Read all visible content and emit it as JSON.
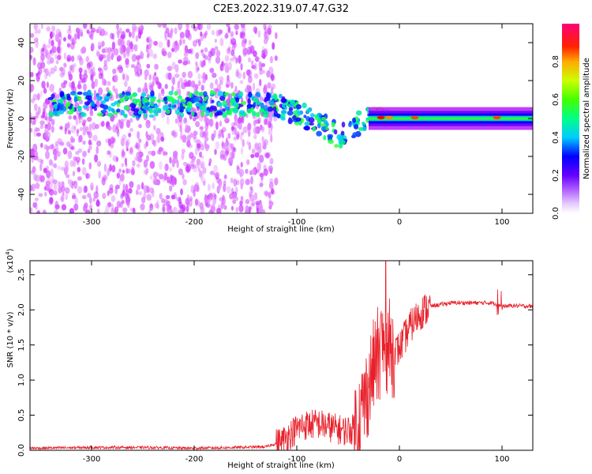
{
  "chart_data": [
    {
      "type": "heatmap",
      "title": "C2E3.2022.319.07.47.G32",
      "xlabel": "Height of straight line (km)",
      "ylabel": "Frequency (Hz)",
      "xlim": [
        -360,
        130
      ],
      "ylim": [
        -50,
        50
      ],
      "xticks": [
        "-300",
        "-200",
        "-100",
        "0",
        "100"
      ],
      "yticks": [
        "-40",
        "-20",
        "0",
        "20",
        "40"
      ],
      "colorbar": {
        "label": "Normalized spectral amplitude",
        "range": [
          0,
          1
        ],
        "ticks": [
          "0.0",
          "0.2",
          "0.4",
          "0.6",
          "0.8"
        ],
        "colors": [
          "#ffffff",
          "#cc33ff",
          "#6600ff",
          "#0000ff",
          "#00ccff",
          "#00ff66",
          "#66ff00",
          "#ffff00",
          "#ff8800",
          "#ff0000",
          "#ff0077"
        ]
      },
      "ridge": {
        "x": [
          -300,
          -250,
          -200,
          -150,
          -120,
          -100,
          -80,
          -60,
          -50,
          -40,
          -30,
          -20,
          -10,
          0,
          50,
          100,
          130
        ],
        "y": [
          8,
          7,
          8,
          8,
          7,
          3,
          -2,
          -9,
          -8,
          -3,
          2,
          3,
          2,
          0,
          0,
          0,
          0
        ]
      },
      "grid": false
    },
    {
      "type": "line",
      "title": "",
      "xlabel": "Height of straight line (km)",
      "ylabel": "SNR (10 * v/v)",
      "multiplier": "(x10",
      "multiplier_exp": "4",
      "xlim": [
        -360,
        130
      ],
      "ylim": [
        0,
        2.7
      ],
      "xticks": [
        "-300",
        "-200",
        "-100",
        "0",
        "100"
      ],
      "yticks": [
        "0.0",
        "0.5",
        "1.0",
        "1.5",
        "2.0",
        "2.5"
      ],
      "line_color": "#e8202a",
      "series": [
        {
          "x": [
            -360,
            -300,
            -250,
            -200,
            -160,
            -130,
            -115,
            -105,
            -95,
            -80,
            -65,
            -55,
            -45,
            -38,
            -30,
            -25,
            -20,
            -15,
            -10,
            -5,
            0,
            10,
            20,
            30,
            50,
            70,
            90,
            95,
            100,
            110,
            130
          ],
          "y": [
            0.03,
            0.04,
            0.04,
            0.03,
            0.04,
            0.05,
            0.12,
            0.25,
            0.35,
            0.38,
            0.32,
            0.28,
            0.3,
            0.5,
            0.9,
            1.2,
            1.4,
            1.5,
            1.48,
            1.4,
            1.45,
            1.75,
            1.95,
            2.05,
            2.1,
            2.1,
            2.1,
            2.08,
            2.05,
            2.06,
            2.05
          ]
        }
      ],
      "grid": false
    }
  ]
}
